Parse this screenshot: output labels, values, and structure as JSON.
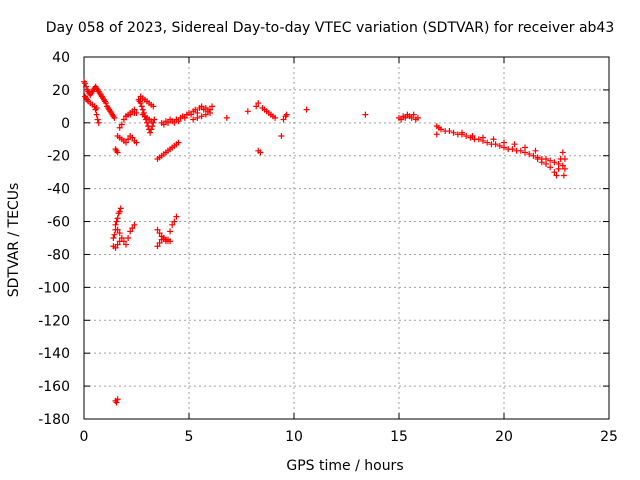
{
  "chart_data": {
    "type": "scatter",
    "title": "Day 058 of 2023, Sidereal Day-to-day VTEC variation (SDTVAR) for receiver ab43",
    "xlabel": "GPS time / hours",
    "ylabel": "SDTVAR / TECUs",
    "xlim": [
      0,
      25
    ],
    "ylim": [
      -180,
      40
    ],
    "xticks": [
      0,
      5,
      10,
      15,
      20,
      25
    ],
    "yticks": [
      40,
      20,
      0,
      -20,
      -40,
      -60,
      -80,
      -100,
      -120,
      -140,
      -160,
      -180
    ],
    "grid": true,
    "legend": "none",
    "marker": "+",
    "color": "#ff0000",
    "series": [
      {
        "name": "SDTVAR",
        "x": [
          0.0,
          0.05,
          0.1,
          0.15,
          0.2,
          0.25,
          0.3,
          0.35,
          0.4,
          0.45,
          0.5,
          0.55,
          0.6,
          0.65,
          0.7,
          0.75,
          0.8,
          0.85,
          0.9,
          0.95,
          1.0,
          1.05,
          1.1,
          1.15,
          1.2,
          1.25,
          1.3,
          1.35,
          1.4,
          1.45,
          0.05,
          0.1,
          0.15,
          0.2,
          0.3,
          0.4,
          0.5,
          0.6,
          0.55,
          0.6,
          0.65,
          0.7,
          1.5,
          1.55,
          1.6,
          1.6,
          1.7,
          1.8,
          1.9,
          2.0,
          2.1,
          2.2,
          2.3,
          2.4,
          2.5,
          1.7,
          1.8,
          1.9,
          2.0,
          2.1,
          2.2,
          2.3,
          2.4,
          2.5,
          2.0,
          2.2,
          2.4,
          2.6,
          2.65,
          2.7,
          2.75,
          2.8,
          2.85,
          2.9,
          2.95,
          3.0,
          3.05,
          3.1,
          3.15,
          3.2,
          3.25,
          3.3,
          3.35,
          2.7,
          2.8,
          2.9,
          3.0,
          3.1,
          3.2,
          3.3,
          2.8,
          2.9,
          3.0,
          3.1,
          3.2,
          3.5,
          3.6,
          3.7,
          3.8,
          3.9,
          4.0,
          4.1,
          4.2,
          4.3,
          4.4,
          4.5,
          3.7,
          3.8,
          3.9,
          4.0,
          4.1,
          4.2,
          4.3,
          4.4,
          4.5,
          4.6,
          4.7,
          4.8,
          4.9,
          5.0,
          5.1,
          5.2,
          5.3,
          5.4,
          5.5,
          5.6,
          5.7,
          5.8,
          5.9,
          6.0,
          6.1,
          5.2,
          5.4,
          5.6,
          5.8,
          6.0,
          1.4,
          1.45,
          1.5,
          1.55,
          1.6,
          1.65,
          1.7,
          1.75,
          1.5,
          1.6,
          1.7,
          1.8,
          1.9,
          2.0,
          2.1,
          2.2,
          2.3,
          2.4,
          1.4,
          1.5,
          1.6,
          1.7,
          3.5,
          3.6,
          3.7,
          3.8,
          3.9,
          4.0,
          4.1,
          4.2,
          4.3,
          4.4,
          3.5,
          3.6,
          3.7,
          3.8,
          3.9,
          4.0,
          4.1,
          1.5,
          1.55,
          1.6,
          6.8,
          7.8,
          8.2,
          8.3,
          8.3,
          8.4,
          8.5,
          8.6,
          8.7,
          8.8,
          8.9,
          9.0,
          9.1,
          9.4,
          9.5,
          9.6,
          9.65,
          10.6,
          13.4,
          15.0,
          15.1,
          15.2,
          15.3,
          15.4,
          15.5,
          15.6,
          15.7,
          15.8,
          15.9,
          16.8,
          16.8,
          16.9,
          17.0,
          17.2,
          17.4,
          17.6,
          17.8,
          18.0,
          18.2,
          18.4,
          18.6,
          18.8,
          19.0,
          19.2,
          19.4,
          19.6,
          19.8,
          20.0,
          20.2,
          20.4,
          20.6,
          20.8,
          21.0,
          21.2,
          21.4,
          21.6,
          21.8,
          22.0,
          22.2,
          22.4,
          22.6,
          22.8,
          18.0,
          18.5,
          19.0,
          19.5,
          20.0,
          20.5,
          21.0,
          21.5,
          21.6,
          21.8,
          22.0,
          22.2,
          22.4,
          22.5,
          22.6,
          22.7,
          22.8,
          22.9,
          22.9,
          22.85
        ],
        "y": [
          25,
          24,
          22,
          20,
          19,
          18,
          17,
          18,
          19,
          20,
          21,
          22,
          21,
          20,
          19,
          18,
          17,
          16,
          15,
          14,
          13,
          12,
          10,
          9,
          8,
          7,
          6,
          5,
          4,
          3,
          16,
          15,
          14,
          13,
          12,
          11,
          10,
          9,
          8,
          5,
          2,
          0,
          -16,
          -17,
          -18,
          -8,
          -9,
          -10,
          -11,
          -12,
          -10,
          -8,
          -9,
          -11,
          -12,
          -3,
          -1,
          2,
          4,
          5,
          6,
          7,
          8,
          6,
          4,
          5,
          6,
          14,
          13,
          12,
          10,
          8,
          6,
          4,
          2,
          0,
          -2,
          -4,
          -6,
          -4,
          -2,
          0,
          2,
          16,
          15,
          14,
          13,
          12,
          11,
          10,
          5,
          4,
          3,
          2,
          1,
          -22,
          -21,
          -20,
          -19,
          -18,
          -17,
          -16,
          -15,
          -14,
          -13,
          -12,
          0,
          -1,
          1,
          0,
          2,
          1,
          0,
          2,
          1,
          3,
          4,
          3,
          5,
          6,
          5,
          7,
          8,
          6,
          9,
          10,
          8,
          9,
          7,
          8,
          10,
          2,
          3,
          4,
          5,
          6,
          -70,
          -68,
          -65,
          -60,
          -58,
          -55,
          -54,
          -52,
          -62,
          -65,
          -67,
          -70,
          -72,
          -74,
          -70,
          -66,
          -64,
          -62,
          -75,
          -76,
          -74,
          -72,
          -75,
          -73,
          -71,
          -70,
          -72,
          -71,
          -66,
          -62,
          -60,
          -57,
          -65,
          -67,
          -69,
          -70,
          -71,
          -72,
          -72,
          -169,
          -170,
          -168,
          3,
          7,
          10,
          12,
          -17,
          -18,
          9,
          8,
          7,
          6,
          5,
          4,
          3,
          -8,
          2,
          4,
          5,
          8,
          5,
          3,
          2,
          4,
          3,
          5,
          4,
          3,
          5,
          2,
          3,
          -2,
          -7,
          -3,
          -4,
          -5,
          -5,
          -6,
          -7,
          -7,
          -8,
          -9,
          -10,
          -10,
          -11,
          -12,
          -13,
          -13,
          -14,
          -15,
          -16,
          -16,
          -17,
          -17,
          -18,
          -19,
          -20,
          -21,
          -22,
          -22,
          -23,
          -24,
          -25,
          -26,
          -6,
          -8,
          -9,
          -10,
          -12,
          -13,
          -15,
          -17,
          -22,
          -24,
          -25,
          -27,
          -30,
          -32,
          -28,
          -22,
          -18,
          -22,
          -28,
          -32
        ]
      }
    ]
  }
}
